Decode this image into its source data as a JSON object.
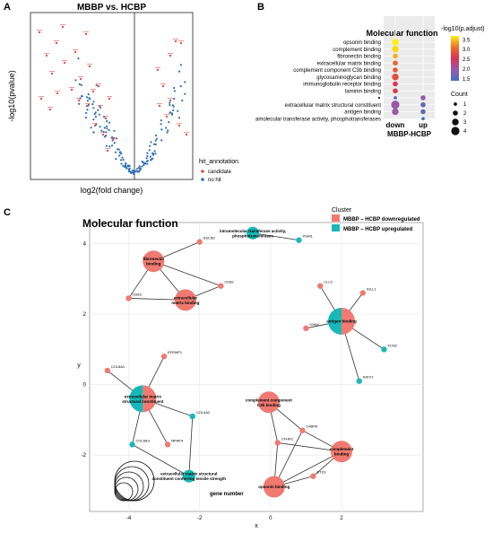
{
  "panels": {
    "a": "A",
    "b": "B",
    "c": "C"
  },
  "colors": {
    "candidate": "#e8504a",
    "nohit": "#2f6fb5",
    "down": "#f07a72",
    "up": "#18b8b8"
  },
  "chart_data": [
    {
      "type": "scatter",
      "title": "MBBP vs. HCBP",
      "xlabel": "log2(fold change)",
      "ylabel": "-log10(pvalue)",
      "legend": {
        "title": "hit_annotation",
        "entries": [
          "candidate",
          "no hit"
        ],
        "placement": "right"
      },
      "grid": false
    },
    {
      "type": "scatter",
      "title": "Molecular function",
      "xlabel": "MBBP-HCBP",
      "categories": [
        "down",
        "up"
      ],
      "terms": [
        "opsonin binding",
        "complement binding",
        "fibronectin binding",
        "extracellular matrix binding",
        "complement component C3b binding",
        "glycosaminoglycan binding",
        "immunoglobulin receptor binding",
        "laminin binding",
        "",
        "extracellular matrix structural constituent",
        "antigen binding",
        "intramolecular transferase activity, phosphotransferases"
      ],
      "points": [
        {
          "term": 0,
          "cat": 0,
          "padj": 3.7,
          "count": 3
        },
        {
          "term": 1,
          "cat": 0,
          "padj": 3.6,
          "count": 3
        },
        {
          "term": 2,
          "cat": 0,
          "padj": 3.4,
          "count": 2
        },
        {
          "term": 3,
          "cat": 0,
          "padj": 3.0,
          "count": 2
        },
        {
          "term": 4,
          "cat": 0,
          "padj": 2.9,
          "count": 2
        },
        {
          "term": 5,
          "cat": 0,
          "padj": 2.8,
          "count": 3
        },
        {
          "term": 6,
          "cat": 0,
          "padj": 2.6,
          "count": 2
        },
        {
          "term": 7,
          "cat": 0,
          "padj": 2.6,
          "count": 2
        },
        {
          "term": 8,
          "cat": 0,
          "padj": 1.5,
          "count": 1
        },
        {
          "term": 9,
          "cat": 0,
          "padj": 2.0,
          "count": 4
        },
        {
          "term": 10,
          "cat": 0,
          "padj": 2.0,
          "count": 3
        },
        {
          "term": 8,
          "cat": 1,
          "padj": 2.0,
          "count": 2
        },
        {
          "term": 9,
          "cat": 1,
          "padj": 1.6,
          "count": 2
        },
        {
          "term": 10,
          "cat": 1,
          "padj": 1.6,
          "count": 2
        },
        {
          "term": 11,
          "cat": 1,
          "padj": 1.4,
          "count": 1
        }
      ],
      "color_legend": {
        "title": "-log10(p.adjust)",
        "ticks": [
          "3.5",
          "3.0",
          "2.5",
          "2.0",
          "1.5"
        ],
        "min": 1.4,
        "max": 3.7
      },
      "size_legend": {
        "title": "Count",
        "entries": [
          "1",
          "2",
          "3",
          "4"
        ]
      }
    },
    {
      "type": "network",
      "title": "Molecular function",
      "xlabel": "x",
      "ylabel": "y",
      "xlim": [
        -5.1,
        4.3
      ],
      "ylim": [
        -3.6,
        4.6
      ],
      "xticks": [
        "-4",
        "-2",
        "0",
        "2"
      ],
      "yticks": [
        "-2",
        "0",
        "2",
        "4"
      ],
      "legend": {
        "title": "Cluster",
        "entries": [
          "MBBP – HCBP downregulated",
          "MBBP – HCBP upregulated"
        ],
        "placement": "top-right"
      },
      "size_legend_title": "gene number",
      "terms": [
        {
          "label": "intramolecular transferase activity,\nphosphotransferases",
          "x": -0.5,
          "y": 4.3,
          "size": 1,
          "kind": "up"
        },
        {
          "label": "fibronectin\nbinding",
          "x": -3.3,
          "y": 3.5,
          "size": 2,
          "kind": "down"
        },
        {
          "label": "extracellular\nmatrix binding",
          "x": -2.4,
          "y": 2.4,
          "size": 2,
          "kind": "down"
        },
        {
          "label": "antigen binding",
          "x": 2.0,
          "y": 1.8,
          "size": 3,
          "kind": "split"
        },
        {
          "label": "extracellular matrix\nstructural constituent",
          "x": -3.6,
          "y": -0.4,
          "size": 3,
          "kind": "split"
        },
        {
          "label": "complement component\nC3b binding",
          "x": -0.05,
          "y": -0.5,
          "size": 2,
          "kind": "down"
        },
        {
          "label": "complement\nbinding",
          "x": 2.0,
          "y": -1.9,
          "size": 2,
          "kind": "down"
        },
        {
          "label": "opsonin binding",
          "x": 0.1,
          "y": -2.9,
          "size": 2,
          "kind": "down"
        },
        {
          "label": "extracellular matrix structural\nconstituent conferring tensile strength",
          "x": -2.3,
          "y": -2.6,
          "size": 1,
          "kind": "up"
        }
      ],
      "genes": [
        {
          "label": "PGM1",
          "x": 0.8,
          "y": 4.1,
          "kind": "up"
        },
        {
          "label": "SSC5D",
          "x": -2.0,
          "y": 4.05,
          "kind": "down"
        },
        {
          "label": "CD83",
          "x": -4.0,
          "y": 2.45,
          "kind": "down"
        },
        {
          "label": "CD82",
          "x": -1.4,
          "y": 2.8,
          "kind": "down"
        },
        {
          "label": "CLL5",
          "x": 1.4,
          "y": 2.8,
          "kind": "down"
        },
        {
          "label": "IGLL1",
          "x": 2.6,
          "y": 2.6,
          "kind": "down"
        },
        {
          "label": "IGKM",
          "x": 1.0,
          "y": 1.6,
          "kind": "down"
        },
        {
          "label": "FCN2",
          "x": 3.2,
          "y": 1.0,
          "kind": "up"
        },
        {
          "label": "IGKV1",
          "x": 2.5,
          "y": 0.1,
          "kind": "up"
        },
        {
          "label": "EFEMP1",
          "x": -3.0,
          "y": 0.8,
          "kind": "down"
        },
        {
          "label": "COL8A1",
          "x": -4.6,
          "y": 0.4,
          "kind": "down"
        },
        {
          "label": "COL4A2",
          "x": -2.2,
          "y": -0.9,
          "kind": "up"
        },
        {
          "label": "MFAP4",
          "x": -2.9,
          "y": -1.7,
          "kind": "down"
        },
        {
          "label": "COL6A3",
          "x": -3.9,
          "y": -1.7,
          "kind": "up"
        },
        {
          "label": "CFHR1",
          "x": 0.2,
          "y": -1.65,
          "kind": "down"
        },
        {
          "label": "C4BPA",
          "x": 0.9,
          "y": -1.3,
          "kind": "down"
        },
        {
          "label": "STX3",
          "x": 1.2,
          "y": -2.6,
          "kind": "down"
        }
      ],
      "edges": [
        [
          0,
          "PGM1"
        ],
        [
          1,
          "SSC5D"
        ],
        [
          1,
          "CD83"
        ],
        [
          1,
          "CD82"
        ],
        [
          2,
          "CD82"
        ],
        [
          2,
          "CD83"
        ],
        [
          1,
          2
        ],
        [
          3,
          "CLL5"
        ],
        [
          3,
          "IGLL1"
        ],
        [
          3,
          "IGKM"
        ],
        [
          3,
          "FCN2"
        ],
        [
          3,
          "IGKV1"
        ],
        [
          4,
          "EFEMP1"
        ],
        [
          4,
          "COL8A1"
        ],
        [
          4,
          "COL4A2"
        ],
        [
          4,
          "MFAP4"
        ],
        [
          4,
          "COL6A3"
        ],
        [
          8,
          "COL6A3"
        ],
        [
          8,
          "COL4A2"
        ],
        [
          5,
          "CFHR1"
        ],
        [
          5,
          "C4BPA"
        ],
        [
          6,
          "C4BPA"
        ],
        [
          6,
          "STX3"
        ],
        [
          6,
          "CFHR1"
        ],
        [
          7,
          "CFHR1"
        ],
        [
          7,
          "STX3"
        ],
        [
          7,
          "C4BPA"
        ],
        [
          6,
          7
        ]
      ]
    }
  ]
}
